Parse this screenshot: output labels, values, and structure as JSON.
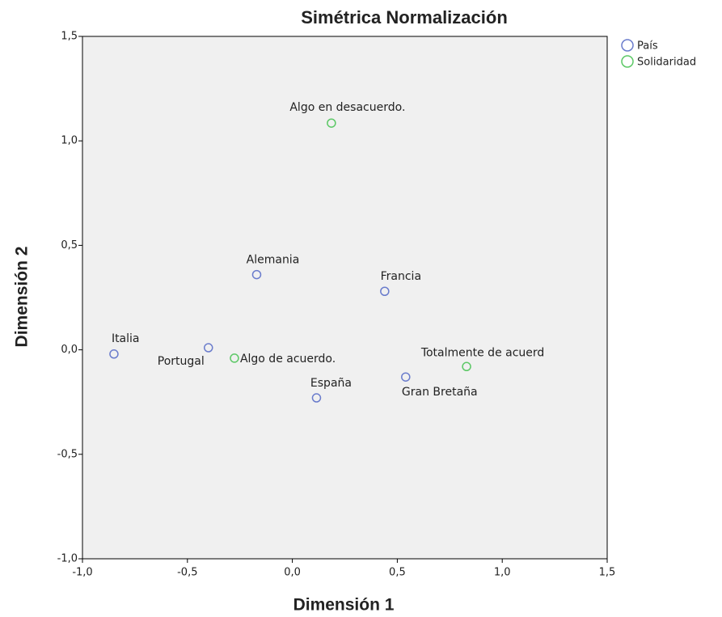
{
  "chart_data": {
    "type": "scatter",
    "title": "Simétrica Normalización",
    "x_label": "Dimensión 1",
    "y_label": "Dimensión 2",
    "xlim": [
      -1.0,
      1.5
    ],
    "ylim": [
      -1.0,
      1.5
    ],
    "xticks": [
      {
        "value": -1.0,
        "label": "-1,0"
      },
      {
        "value": -0.5,
        "label": "-0,5"
      },
      {
        "value": 0.0,
        "label": "0,0"
      },
      {
        "value": 0.5,
        "label": "0,5"
      },
      {
        "value": 1.0,
        "label": "1,0"
      },
      {
        "value": 1.5,
        "label": "1,5"
      }
    ],
    "yticks": [
      {
        "value": -1.0,
        "label": "-1,0"
      },
      {
        "value": -0.5,
        "label": "-0,5"
      },
      {
        "value": 0.0,
        "label": "0,0"
      },
      {
        "value": 0.5,
        "label": "0,5"
      },
      {
        "value": 1.0,
        "label": "1,0"
      },
      {
        "value": 1.5,
        "label": "1,5"
      }
    ],
    "legend": "top-right",
    "series": [
      {
        "name": "País",
        "color": "#6a7ccc",
        "labels": [
          "Italia",
          "Portugal",
          "Alemania",
          "España",
          "Francia",
          "Gran Bretaña"
        ],
        "x": [
          -0.85,
          -0.4,
          -0.17,
          0.115,
          0.44,
          0.54
        ],
        "y": [
          -0.02,
          0.01,
          0.36,
          -0.23,
          0.28,
          -0.13
        ]
      },
      {
        "name": "Solidaridad",
        "color": "#5cc866",
        "labels": [
          "Algo en desacuerdo.",
          "Algo de acuerdo.",
          "Totalmente de acuerd"
        ],
        "x": [
          0.186,
          -0.276,
          0.83
        ],
        "y": [
          1.085,
          -0.04,
          -0.08
        ]
      }
    ]
  }
}
